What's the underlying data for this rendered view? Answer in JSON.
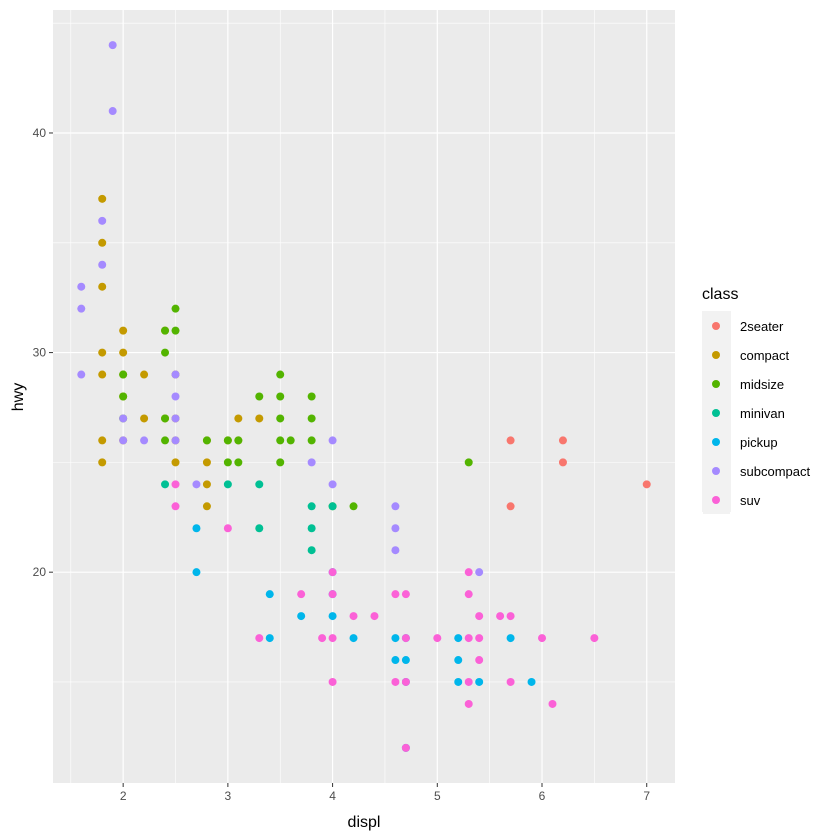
{
  "chart_data": {
    "type": "scatter",
    "title": "",
    "xlabel": "displ",
    "ylabel": "hwy",
    "xlim": [
      1.33,
      7.27
    ],
    "ylim": [
      10.4,
      45.6
    ],
    "x_ticks": [
      2,
      3,
      4,
      5,
      6,
      7
    ],
    "y_ticks": [
      20,
      30,
      40
    ],
    "grid": true,
    "legend": {
      "title": "class",
      "position": "right"
    },
    "series": [
      {
        "name": "2seater",
        "color": "#F8766D",
        "points": [
          [
            5.7,
            26
          ],
          [
            5.7,
            23
          ],
          [
            6.2,
            26
          ],
          [
            6.2,
            25
          ],
          [
            7.0,
            24
          ]
        ]
      },
      {
        "name": "compact",
        "color": "#C49A00",
        "points": [
          [
            1.8,
            37
          ],
          [
            1.8,
            35
          ],
          [
            1.8,
            33
          ],
          [
            1.8,
            30
          ],
          [
            1.8,
            29
          ],
          [
            1.8,
            26
          ],
          [
            1.8,
            25
          ],
          [
            2.0,
            31
          ],
          [
            2.0,
            30
          ],
          [
            2.0,
            29
          ],
          [
            2.0,
            28
          ],
          [
            2.0,
            26
          ],
          [
            2.2,
            29
          ],
          [
            2.2,
            27
          ],
          [
            2.4,
            31
          ],
          [
            2.4,
            27
          ],
          [
            2.5,
            29
          ],
          [
            2.5,
            27
          ],
          [
            2.5,
            26
          ],
          [
            2.5,
            25
          ],
          [
            2.8,
            26
          ],
          [
            2.8,
            25
          ],
          [
            2.8,
            24
          ],
          [
            2.8,
            23
          ],
          [
            3.0,
            26
          ],
          [
            3.1,
            27
          ],
          [
            3.1,
            26
          ],
          [
            3.3,
            27
          ]
        ]
      },
      {
        "name": "midsize",
        "color": "#53B400",
        "points": [
          [
            2.0,
            29
          ],
          [
            2.0,
            28
          ],
          [
            2.0,
            27
          ],
          [
            2.4,
            31
          ],
          [
            2.4,
            30
          ],
          [
            2.4,
            27
          ],
          [
            2.4,
            26
          ],
          [
            2.5,
            32
          ],
          [
            2.5,
            31
          ],
          [
            2.8,
            26
          ],
          [
            3.0,
            26
          ],
          [
            3.0,
            25
          ],
          [
            3.1,
            26
          ],
          [
            3.1,
            25
          ],
          [
            3.3,
            28
          ],
          [
            3.5,
            29
          ],
          [
            3.5,
            28
          ],
          [
            3.5,
            27
          ],
          [
            3.5,
            26
          ],
          [
            3.5,
            25
          ],
          [
            3.6,
            26
          ],
          [
            3.8,
            28
          ],
          [
            3.8,
            27
          ],
          [
            3.8,
            26
          ],
          [
            4.0,
            23
          ],
          [
            4.2,
            23
          ],
          [
            5.3,
            25
          ]
        ]
      },
      {
        "name": "minivan",
        "color": "#00C094",
        "points": [
          [
            2.4,
            24
          ],
          [
            3.0,
            24
          ],
          [
            3.3,
            24
          ],
          [
            3.3,
            22
          ],
          [
            3.8,
            23
          ],
          [
            3.8,
            22
          ],
          [
            3.8,
            21
          ],
          [
            4.0,
            23
          ]
        ]
      },
      {
        "name": "pickup",
        "color": "#00B6EB",
        "points": [
          [
            2.7,
            22
          ],
          [
            2.7,
            20
          ],
          [
            3.4,
            19
          ],
          [
            3.4,
            17
          ],
          [
            3.7,
            18
          ],
          [
            4.0,
            20
          ],
          [
            4.0,
            19
          ],
          [
            4.0,
            18
          ],
          [
            4.2,
            17
          ],
          [
            4.6,
            17
          ],
          [
            4.6,
            16
          ],
          [
            4.7,
            17
          ],
          [
            4.7,
            16
          ],
          [
            4.7,
            15
          ],
          [
            4.7,
            12
          ],
          [
            5.2,
            17
          ],
          [
            5.2,
            16
          ],
          [
            5.2,
            15
          ],
          [
            5.4,
            15
          ],
          [
            5.7,
            17
          ],
          [
            5.9,
            15
          ]
        ]
      },
      {
        "name": "subcompact",
        "color": "#A58AFF",
        "points": [
          [
            1.6,
            33
          ],
          [
            1.6,
            32
          ],
          [
            1.6,
            29
          ],
          [
            1.9,
            44
          ],
          [
            1.9,
            41
          ],
          [
            1.8,
            36
          ],
          [
            1.8,
            34
          ],
          [
            2.0,
            27
          ],
          [
            2.0,
            26
          ],
          [
            2.2,
            26
          ],
          [
            2.5,
            29
          ],
          [
            2.5,
            28
          ],
          [
            2.5,
            27
          ],
          [
            2.5,
            26
          ],
          [
            2.7,
            24
          ],
          [
            3.8,
            25
          ],
          [
            4.0,
            26
          ],
          [
            4.0,
            24
          ],
          [
            4.6,
            23
          ],
          [
            4.6,
            22
          ],
          [
            4.6,
            21
          ],
          [
            5.4,
            20
          ]
        ]
      },
      {
        "name": "suv",
        "color": "#FB61D7",
        "points": [
          [
            2.5,
            24
          ],
          [
            2.5,
            23
          ],
          [
            3.0,
            22
          ],
          [
            3.3,
            17
          ],
          [
            3.7,
            19
          ],
          [
            3.9,
            17
          ],
          [
            4.0,
            20
          ],
          [
            4.0,
            19
          ],
          [
            4.0,
            17
          ],
          [
            4.0,
            15
          ],
          [
            4.2,
            18
          ],
          [
            4.4,
            18
          ],
          [
            4.6,
            19
          ],
          [
            4.6,
            15
          ],
          [
            4.7,
            19
          ],
          [
            4.7,
            17
          ],
          [
            4.7,
            15
          ],
          [
            4.7,
            12
          ],
          [
            5.0,
            17
          ],
          [
            5.3,
            20
          ],
          [
            5.3,
            19
          ],
          [
            5.3,
            17
          ],
          [
            5.3,
            15
          ],
          [
            5.3,
            14
          ],
          [
            5.4,
            18
          ],
          [
            5.4,
            17
          ],
          [
            5.4,
            16
          ],
          [
            5.6,
            18
          ],
          [
            5.7,
            18
          ],
          [
            5.7,
            15
          ],
          [
            6.0,
            17
          ],
          [
            6.1,
            14
          ],
          [
            6.5,
            17
          ]
        ]
      }
    ]
  }
}
